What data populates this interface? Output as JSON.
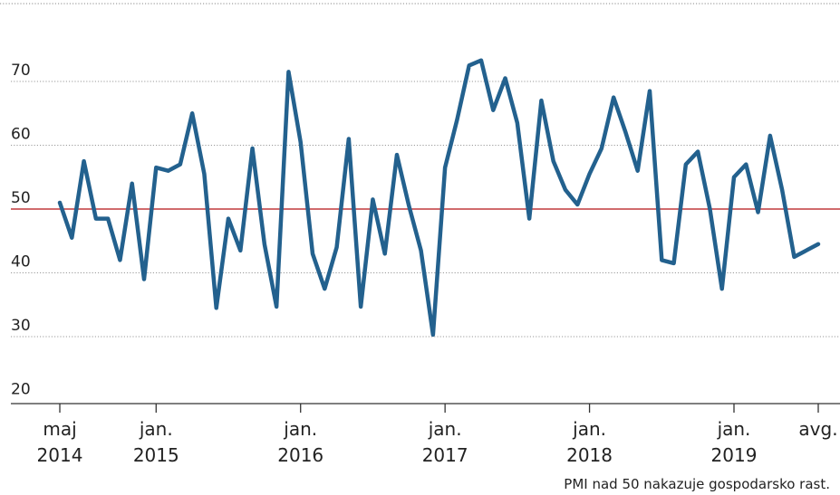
{
  "chart_data": {
    "type": "line",
    "title": "",
    "xlabel": "",
    "ylabel": "",
    "ylim": [
      20,
      75
    ],
    "yticks": [
      20,
      30,
      40,
      50,
      60,
      70
    ],
    "grid": true,
    "reference_line": {
      "value": 50,
      "color": "#c0393b"
    },
    "line_color": "#23618e",
    "x_tick_labels": [
      {
        "index": 0,
        "month": "maj",
        "year": "2014"
      },
      {
        "index": 8,
        "month": "jan.",
        "year": "2015"
      },
      {
        "index": 20,
        "month": "jan.",
        "year": "2016"
      },
      {
        "index": 32,
        "month": "jan.",
        "year": "2017"
      },
      {
        "index": 44,
        "month": "jan.",
        "year": "2018"
      },
      {
        "index": 56,
        "month": "jan.",
        "year": "2019"
      },
      {
        "index": 63,
        "month": "avg.",
        "year": ""
      }
    ],
    "series": [
      {
        "values": [
          51,
          45.5,
          57.5,
          48.5,
          48.5,
          42,
          54,
          39,
          56.5,
          56,
          57,
          65,
          55.5,
          34.5,
          48.5,
          43.5,
          59.5,
          44.5,
          34.7,
          71.5,
          60.5,
          43,
          37.5,
          44,
          61,
          34.7,
          51.5,
          43,
          58.5,
          50.5,
          43.5,
          30.3,
          56.5,
          64,
          72.5,
          73.3,
          65.5,
          70.5,
          63.5,
          48.5,
          67,
          57.5,
          53,
          50.7,
          55.5,
          59.5,
          67.5,
          62,
          56,
          68.5,
          42,
          41.5,
          57,
          59,
          50,
          37.5,
          55,
          57,
          49.5,
          61.5,
          53,
          42.5,
          43.5,
          44.5
        ]
      }
    ],
    "note": "PMI nad 50 nakazuje gospodarsko rast."
  }
}
